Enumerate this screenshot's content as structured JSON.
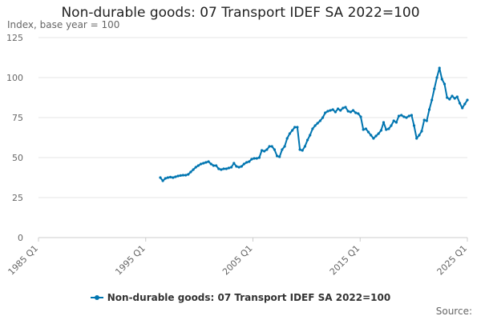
{
  "chart_data": {
    "type": "line",
    "title": "Non-durable goods: 07 Transport IDEF SA 2022=100",
    "ylabel": "Index, base year = 100",
    "xlabel": "",
    "source_label": "Source:",
    "ylim": [
      0,
      125
    ],
    "yticks": [
      "0",
      "25",
      "50",
      "75",
      "100",
      "125"
    ],
    "xlim": [
      1985,
      2025
    ],
    "xticks": [
      {
        "value": 1985,
        "label": "1985 Q1"
      },
      {
        "value": 1995,
        "label": "1995 Q1"
      },
      {
        "value": 2005,
        "label": "2005 Q1"
      },
      {
        "value": 2015,
        "label": "2015 Q1"
      },
      {
        "value": 2025,
        "label": "2025 Q1"
      }
    ],
    "grid": true,
    "legend_position": "bottom",
    "colors": {
      "series": "#0075b0",
      "grid": "#e6e6e6",
      "axis": "#cccccc"
    },
    "series": [
      {
        "name": "Non-durable goods: 07 Transport IDEF SA 2022=100",
        "points": [
          [
            1997.0,
            37.5
          ],
          [
            1997.25,
            35.5
          ],
          [
            1997.5,
            37.0
          ],
          [
            1997.75,
            37.5
          ],
          [
            1998.0,
            37.8
          ],
          [
            1998.25,
            37.5
          ],
          [
            1998.5,
            38.0
          ],
          [
            1998.75,
            38.5
          ],
          [
            1999.0,
            38.8
          ],
          [
            1999.25,
            39.0
          ],
          [
            1999.5,
            39.0
          ],
          [
            1999.75,
            39.5
          ],
          [
            2000.0,
            41.0
          ],
          [
            2000.25,
            42.5
          ],
          [
            2000.5,
            44.0
          ],
          [
            2000.75,
            45.0
          ],
          [
            2001.0,
            46.0
          ],
          [
            2001.25,
            46.5
          ],
          [
            2001.5,
            47.0
          ],
          [
            2001.75,
            47.5
          ],
          [
            2002.0,
            46.0
          ],
          [
            2002.25,
            45.0
          ],
          [
            2002.5,
            45.0
          ],
          [
            2002.75,
            43.0
          ],
          [
            2003.0,
            42.5
          ],
          [
            2003.25,
            43.0
          ],
          [
            2003.5,
            43.0
          ],
          [
            2003.75,
            43.5
          ],
          [
            2004.0,
            44.0
          ],
          [
            2004.25,
            46.5
          ],
          [
            2004.5,
            44.5
          ],
          [
            2004.75,
            44.0
          ],
          [
            2005.0,
            44.5
          ],
          [
            2005.25,
            46.0
          ],
          [
            2005.5,
            47.0
          ],
          [
            2005.75,
            47.5
          ],
          [
            2006.0,
            49.0
          ],
          [
            2006.25,
            49.5
          ],
          [
            2006.5,
            49.5
          ],
          [
            2006.75,
            50.0
          ],
          [
            2007.0,
            54.5
          ],
          [
            2007.25,
            54.0
          ],
          [
            2007.5,
            55.0
          ],
          [
            2007.75,
            57.0
          ],
          [
            2008.0,
            57.0
          ],
          [
            2008.25,
            55.0
          ],
          [
            2008.5,
            51.0
          ],
          [
            2008.75,
            50.5
          ],
          [
            2009.0,
            55.0
          ],
          [
            2009.25,
            57.0
          ],
          [
            2009.5,
            62.0
          ],
          [
            2009.75,
            65.0
          ],
          [
            2010.0,
            67.0
          ],
          [
            2010.25,
            69.0
          ],
          [
            2010.5,
            69.0
          ],
          [
            2010.75,
            55.0
          ],
          [
            2011.0,
            54.5
          ],
          [
            2011.25,
            57.0
          ],
          [
            2011.5,
            61.0
          ],
          [
            2011.75,
            64.0
          ],
          [
            2012.0,
            68.0
          ],
          [
            2012.25,
            70.0
          ],
          [
            2012.5,
            71.5
          ],
          [
            2012.75,
            73.0
          ],
          [
            2013.0,
            75.0
          ],
          [
            2013.25,
            78.0
          ],
          [
            2013.5,
            79.0
          ],
          [
            2013.75,
            79.5
          ],
          [
            2014.0,
            80.0
          ],
          [
            2014.25,
            78.5
          ],
          [
            2014.5,
            80.5
          ],
          [
            2014.75,
            79.5
          ],
          [
            2015.0,
            81.0
          ],
          [
            2015.25,
            81.5
          ],
          [
            2015.5,
            79.0
          ],
          [
            2015.75,
            78.5
          ],
          [
            2016.0,
            79.5
          ],
          [
            2016.25,
            78.0
          ],
          [
            2016.5,
            77.5
          ],
          [
            2016.75,
            75.5
          ],
          [
            2017.0,
            67.5
          ],
          [
            2017.25,
            68.0
          ],
          [
            2017.5,
            66.0
          ],
          [
            2017.75,
            64.0
          ],
          [
            2018.0,
            62.0
          ],
          [
            2018.25,
            63.5
          ],
          [
            2018.5,
            65.0
          ],
          [
            2018.75,
            67.0
          ],
          [
            2019.0,
            72.0
          ],
          [
            2019.25,
            67.5
          ],
          [
            2019.5,
            68.0
          ],
          [
            2019.75,
            70.0
          ],
          [
            2020.0,
            73.0
          ],
          [
            2020.25,
            72.0
          ],
          [
            2020.5,
            76.0
          ],
          [
            2020.75,
            76.5
          ],
          [
            2021.0,
            75.5
          ],
          [
            2021.25,
            75.0
          ],
          [
            2021.5,
            76.0
          ],
          [
            2021.75,
            76.5
          ],
          [
            2022.0,
            70.0
          ],
          [
            2022.25,
            62.0
          ],
          [
            2022.5,
            64.0
          ],
          [
            2022.75,
            66.5
          ],
          [
            2023.0,
            73.5
          ],
          [
            2023.25,
            73.0
          ],
          [
            2023.5,
            80.0
          ],
          [
            2023.75,
            86.0
          ],
          [
            2024.0,
            93.0
          ],
          [
            2024.25,
            100.0
          ],
          [
            2024.5,
            106.0
          ],
          [
            2024.75,
            99.0
          ],
          [
            2025.0,
            96.0
          ],
          [
            2025.25,
            87.5
          ],
          [
            2025.5,
            86.5
          ],
          [
            2025.75,
            88.5
          ],
          [
            2026.0,
            87.0
          ],
          [
            2026.25,
            88.0
          ],
          [
            2026.5,
            84.0
          ],
          [
            2026.75,
            81.0
          ],
          [
            2027.0,
            83.5
          ],
          [
            2027.25,
            86.0
          ]
        ]
      }
    ]
  }
}
